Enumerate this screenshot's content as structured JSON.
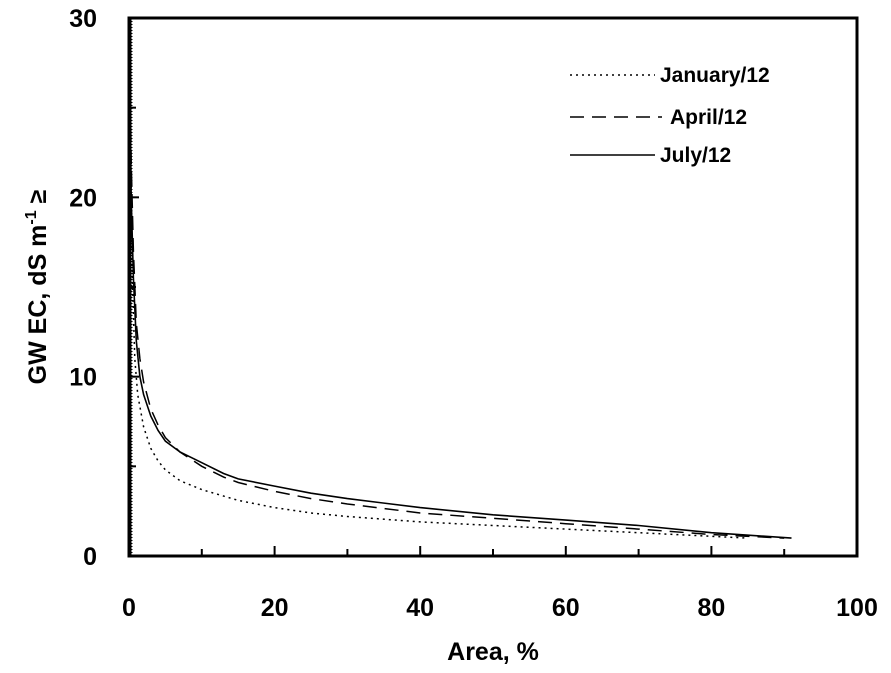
{
  "chart_data": {
    "type": "line",
    "title": "",
    "xlabel": "Area, %",
    "ylabel_main": "GW EC, dS m",
    "ylabel_sup": "-1",
    "ylabel_tail": " ≥",
    "xlim": [
      0,
      100
    ],
    "ylim": [
      0,
      30
    ],
    "x_ticks": [
      "0",
      "20",
      "40",
      "60",
      "80",
      "100"
    ],
    "y_ticks": [
      "0",
      "10",
      "20",
      "30"
    ],
    "grid": false,
    "legend_position": "top-right",
    "series": [
      {
        "name": "January/12",
        "style": "dotted",
        "points": [
          [
            0.05,
            30
          ],
          [
            0.2,
            23
          ],
          [
            0.5,
            15
          ],
          [
            0.8,
            11
          ],
          [
            1.2,
            9
          ],
          [
            2,
            7.2
          ],
          [
            3,
            6
          ],
          [
            4,
            5.3
          ],
          [
            5,
            4.8
          ],
          [
            7,
            4.2
          ],
          [
            10,
            3.7
          ],
          [
            15,
            3.1
          ],
          [
            20,
            2.7
          ],
          [
            25,
            2.4
          ],
          [
            30,
            2.2
          ],
          [
            40,
            1.9
          ],
          [
            50,
            1.7
          ],
          [
            60,
            1.5
          ],
          [
            70,
            1.3
          ],
          [
            80,
            1.1
          ],
          [
            85,
            1.0
          ]
        ]
      },
      {
        "name": "April/12",
        "style": "dashed",
        "points": [
          [
            0.05,
            30
          ],
          [
            0.3,
            22
          ],
          [
            0.6,
            17
          ],
          [
            1,
            13
          ],
          [
            1.5,
            11
          ],
          [
            2,
            9.7
          ],
          [
            3,
            8.2
          ],
          [
            4,
            7.3
          ],
          [
            5,
            6.6
          ],
          [
            7,
            5.8
          ],
          [
            10,
            5.0
          ],
          [
            13,
            4.4
          ],
          [
            15,
            4.1
          ],
          [
            20,
            3.6
          ],
          [
            25,
            3.2
          ],
          [
            30,
            2.9
          ],
          [
            40,
            2.4
          ],
          [
            50,
            2.1
          ],
          [
            60,
            1.8
          ],
          [
            70,
            1.5
          ],
          [
            80,
            1.2
          ],
          [
            90,
            1.0
          ]
        ]
      },
      {
        "name": "July/12",
        "style": "solid",
        "points": [
          [
            0.05,
            30
          ],
          [
            0.3,
            20
          ],
          [
            0.6,
            15.5
          ],
          [
            1,
            12
          ],
          [
            1.5,
            10
          ],
          [
            2,
            9.0
          ],
          [
            3,
            7.8
          ],
          [
            4,
            7.0
          ],
          [
            5,
            6.4
          ],
          [
            7,
            5.8
          ],
          [
            10,
            5.2
          ],
          [
            13,
            4.6
          ],
          [
            15,
            4.3
          ],
          [
            20,
            3.9
          ],
          [
            25,
            3.5
          ],
          [
            30,
            3.2
          ],
          [
            40,
            2.7
          ],
          [
            50,
            2.3
          ],
          [
            60,
            2.0
          ],
          [
            70,
            1.7
          ],
          [
            80,
            1.3
          ],
          [
            91,
            1.0
          ]
        ]
      }
    ]
  }
}
